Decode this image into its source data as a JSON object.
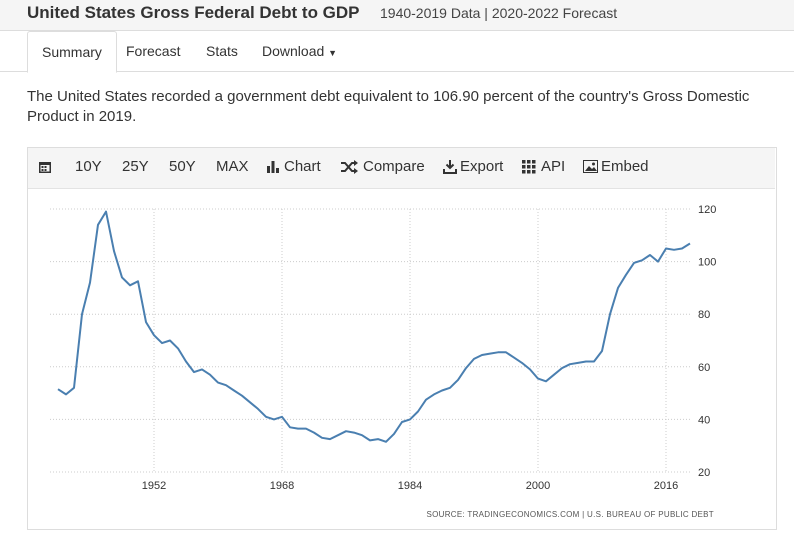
{
  "header": {
    "title": "United States Gross Federal Debt to GDP",
    "subtitle": "1940-2019 Data | 2020-2022 Forecast"
  },
  "tabs": [
    "Summary",
    "Forecast",
    "Stats",
    "Download"
  ],
  "description": "The United States recorded a government debt equivalent to 106.90 percent of the country's Gross Domestic Product in 2019.",
  "toolbar": [
    "10Y",
    "25Y",
    "50Y",
    "MAX",
    "Chart",
    "Compare",
    "Export",
    "API",
    "Embed"
  ],
  "chart_data": {
    "type": "line",
    "x": [
      1940,
      1941,
      1942,
      1943,
      1944,
      1945,
      1946,
      1947,
      1948,
      1949,
      1950,
      1951,
      1952,
      1953,
      1954,
      1955,
      1956,
      1957,
      1958,
      1959,
      1960,
      1961,
      1962,
      1963,
      1964,
      1965,
      1966,
      1967,
      1968,
      1969,
      1970,
      1971,
      1972,
      1973,
      1974,
      1975,
      1976,
      1977,
      1978,
      1979,
      1980,
      1981,
      1982,
      1983,
      1984,
      1985,
      1986,
      1987,
      1988,
      1989,
      1990,
      1991,
      1992,
      1993,
      1994,
      1995,
      1996,
      1997,
      1998,
      1999,
      2000,
      2001,
      2002,
      2003,
      2004,
      2005,
      2006,
      2007,
      2008,
      2009,
      2010,
      2011,
      2012,
      2013,
      2014,
      2015,
      2016,
      2017,
      2018,
      2019
    ],
    "series": [
      {
        "color": "#4a7fb0",
        "values": [
          51.5,
          49.5,
          52,
          80,
          92,
          114,
          119,
          104,
          94,
          91,
          92.5,
          77,
          72,
          69,
          70,
          67,
          62,
          58,
          59,
          57,
          54,
          53,
          51,
          49,
          46.5,
          44,
          41,
          40,
          41,
          37,
          36.5,
          36.5,
          35,
          33,
          32.5,
          34,
          35.5,
          35,
          34,
          32,
          32.5,
          31.5,
          34.5,
          39,
          40,
          43,
          47.5,
          49.5,
          51,
          52,
          55,
          59.5,
          63,
          64.5,
          65,
          65.5,
          65.5,
          63.5,
          61.5,
          59,
          55.5,
          54.5,
          57,
          59.5,
          61,
          61.5,
          62,
          62,
          66,
          80,
          90,
          95,
          99.5,
          100.5,
          102.5,
          100,
          105,
          104.5,
          105,
          106.9
        ]
      }
    ],
    "xlim": [
      1939,
      2019
    ],
    "xticks": [
      1952,
      1968,
      1984,
      2000,
      2016
    ],
    "ylim": [
      20,
      120
    ],
    "yticks": [
      20,
      40,
      60,
      80,
      100,
      120
    ],
    "grid": true,
    "source": "SOURCE: TRADINGECONOMICS.COM | U.S. BUREAU OF PUBLIC DEBT"
  }
}
